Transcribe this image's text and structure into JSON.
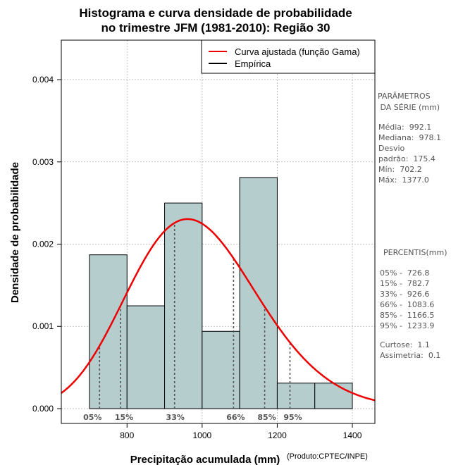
{
  "chart_data": {
    "type": "bar",
    "title_lines": [
      "Histograma e curva densidade de probabilidade",
      "no trimestre JFM (1981-2010): Região 30"
    ],
    "xlabel": "Precipitação acumulada (mm)",
    "ylabel": "Densidade de probabilidade",
    "credit": "(Produto:CPTEC/INPE)",
    "xlim": [
      625,
      1460
    ],
    "ylim": [
      -0.00018,
      0.00448
    ],
    "xticks": [
      800,
      1000,
      1200,
      1400
    ],
    "xtick_labels": [
      "800",
      "1000",
      "1200",
      "1400"
    ],
    "yticks": [
      0,
      0.001,
      0.002,
      0.003,
      0.004
    ],
    "ytick_labels": [
      "0.000",
      "0.001",
      "0.002",
      "0.003",
      "0.004"
    ],
    "grid": true,
    "bins": [
      {
        "start": 700,
        "end": 800,
        "value": 0.00187
      },
      {
        "start": 800,
        "end": 900,
        "value": 0.00125
      },
      {
        "start": 900,
        "end": 1000,
        "value": 0.0025
      },
      {
        "start": 1000,
        "end": 1100,
        "value": 0.00094
      },
      {
        "start": 1100,
        "end": 1200,
        "value": 0.00281
      },
      {
        "start": 1200,
        "end": 1300,
        "value": 0.00031
      },
      {
        "start": 1300,
        "end": 1400,
        "value": 0.00031
      }
    ],
    "gamma_fit": {
      "mean": 992.1,
      "sd": 175.4
    },
    "percentile_lines": [
      {
        "label": "05%",
        "x": 726.8
      },
      {
        "label": "15%",
        "x": 782.7
      },
      {
        "label": "33%",
        "x": 926.6
      },
      {
        "label": "66%",
        "x": 1083.6
      },
      {
        "label": "85%",
        "x": 1166.5
      },
      {
        "label": "95%",
        "x": 1233.9
      }
    ],
    "legend": {
      "position": "top-right",
      "entries": [
        {
          "label": "Curva ajustada (função Gama)",
          "color": "#ee0000"
        },
        {
          "label": "Empírica",
          "color": "#000000"
        }
      ]
    },
    "colors": {
      "bar_fill": "#b5cdcd",
      "curve": "#ee0000",
      "grid": "#b0b0b0"
    }
  },
  "side_panel": {
    "parametros_title": [
      "PARÂMETROS",
      " DA SÉRIE (mm)"
    ],
    "parametros": [
      "Média:  992.1",
      "Mediana:  978.1",
      "Desvio",
      "padrão:  175.4",
      "Mín:  702.2",
      "Máx:  1377.0"
    ],
    "percentis_title": "PERCENTIS(mm)",
    "percentis": [
      "05% -  726.8",
      "15% -  782.7",
      "33% -  926.6",
      "66% -  1083.6",
      "85% -  1166.5",
      "95% -  1233.9"
    ],
    "stats": [
      "Curtose:  1.1",
      "Assimetria:  0.1"
    ]
  }
}
